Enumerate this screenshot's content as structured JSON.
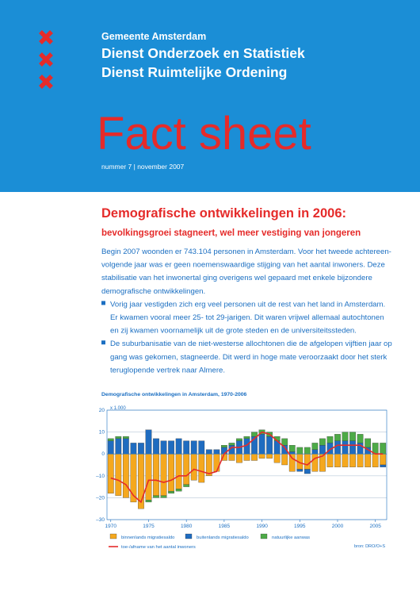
{
  "header": {
    "org": "Gemeente Amsterdam",
    "dept1": "Dienst Onderzoek en Statistiek",
    "dept2": "Dienst Ruimtelijke Ordening",
    "title": "Fact sheet",
    "issue": "nummer 7 | november 2007"
  },
  "article": {
    "title": "Demografische ontwikkelingen in 2006:",
    "subtitle": "bevolkingsgroei stagneert, wel meer vestiging van jongeren",
    "intro": [
      "Begin 2007 woonden er 743.104 personen in Amsterdam. Voor het tweede achtereen-",
      "volgende jaar was er geen noemenswaardige stijging van het aantal inwoners. Deze",
      "stabilisatie van het inwonertal ging overigens wel gepaard met enkele bijzondere",
      "demografische ontwikkelingen."
    ],
    "bullets": [
      [
        "Vorig jaar vestigden zich erg veel personen uit de rest van het land in Amsterdam.",
        "Er kwamen vooral meer 25- tot 29-jarigen. Dit waren vrijwel allemaal autochtonen",
        "en zij kwamen voornamelijk uit de grote steden en de universiteitssteden."
      ],
      [
        "De suburbanisatie van de niet-westerse allochtonen die de afgelopen vijftien jaar op",
        "gang was gekomen, stagneerde. Dit werd in hoge mate veroorzaakt door het sterk",
        "teruglopende vertrek naar Almere."
      ]
    ]
  },
  "chart_data": {
    "type": "bar",
    "stacked": true,
    "title": "Demografische ontwikkelingen in Amsterdam, 1970-2006",
    "unit_label": "x 1.000",
    "source": "bron: DRO/O+S",
    "x": [
      1970,
      1971,
      1972,
      1973,
      1974,
      1975,
      1976,
      1977,
      1978,
      1979,
      1980,
      1981,
      1982,
      1983,
      1984,
      1985,
      1986,
      1987,
      1988,
      1989,
      1990,
      1991,
      1992,
      1993,
      1994,
      1995,
      1996,
      1997,
      1998,
      1999,
      2000,
      2001,
      2002,
      2003,
      2004,
      2005,
      2006
    ],
    "xlim": [
      1969.5,
      2006.5
    ],
    "xticks": [
      1970,
      1975,
      1980,
      1985,
      1990,
      1995,
      2000,
      2005
    ],
    "ylim": [
      -30,
      20
    ],
    "yticks": [
      20,
      10,
      0,
      {
        "value": -10,
        "label": "–10"
      },
      {
        "value": -20,
        "label": "–20"
      },
      {
        "value": -30,
        "label": "–30"
      }
    ],
    "grid": true,
    "series": [
      {
        "name": "binnenlands migratiesaldo",
        "color": "#f5a81e",
        "type": "bar",
        "values": [
          -18,
          -19,
          -20,
          -22,
          -25,
          -21,
          -19,
          -19,
          -17,
          -16,
          -14,
          -12,
          -13,
          -10,
          -8,
          -3,
          -3,
          -4,
          -3,
          -3,
          -2,
          -2,
          -4,
          -5,
          -8,
          -7,
          -7,
          -8,
          -8,
          -6,
          -6,
          -6,
          -6,
          -6,
          -6,
          -6,
          -5
        ]
      },
      {
        "name": "buitenlands migratiesaldo",
        "color": "#1f6cc0",
        "type": "bar",
        "values": [
          6,
          7,
          7,
          5,
          5,
          11,
          7,
          6,
          6,
          7,
          6,
          6,
          6,
          2,
          2,
          3,
          4,
          6,
          7,
          8,
          9,
          8,
          6,
          4,
          1,
          -1,
          -2,
          2,
          4,
          5,
          6,
          6,
          6,
          5,
          3,
          0,
          -1
        ]
      },
      {
        "name": "natuurlijke aanwas",
        "color": "#4daa47",
        "type": "bar",
        "values": [
          1,
          1,
          1,
          0,
          0,
          -1,
          -1,
          -1,
          -1,
          -1,
          -1,
          0,
          0,
          0,
          0,
          1,
          1,
          1,
          1,
          2,
          2,
          2,
          2,
          3,
          3,
          3,
          3,
          3,
          3,
          3,
          3,
          4,
          4,
          4,
          4,
          5,
          5
        ]
      },
      {
        "name": "toe-/afname van het aantal inwoners",
        "color": "#e52b2a",
        "type": "line",
        "values": [
          -11,
          -12,
          -14,
          -19,
          -22,
          -12,
          -12,
          -13,
          -12,
          -10,
          -10,
          -7,
          -8,
          -9,
          -8,
          0,
          3,
          3,
          4,
          7,
          10,
          9,
          6,
          3,
          -2,
          -4,
          -5,
          -2,
          -1,
          2,
          4,
          4,
          4,
          4,
          2,
          0,
          0
        ]
      }
    ]
  }
}
